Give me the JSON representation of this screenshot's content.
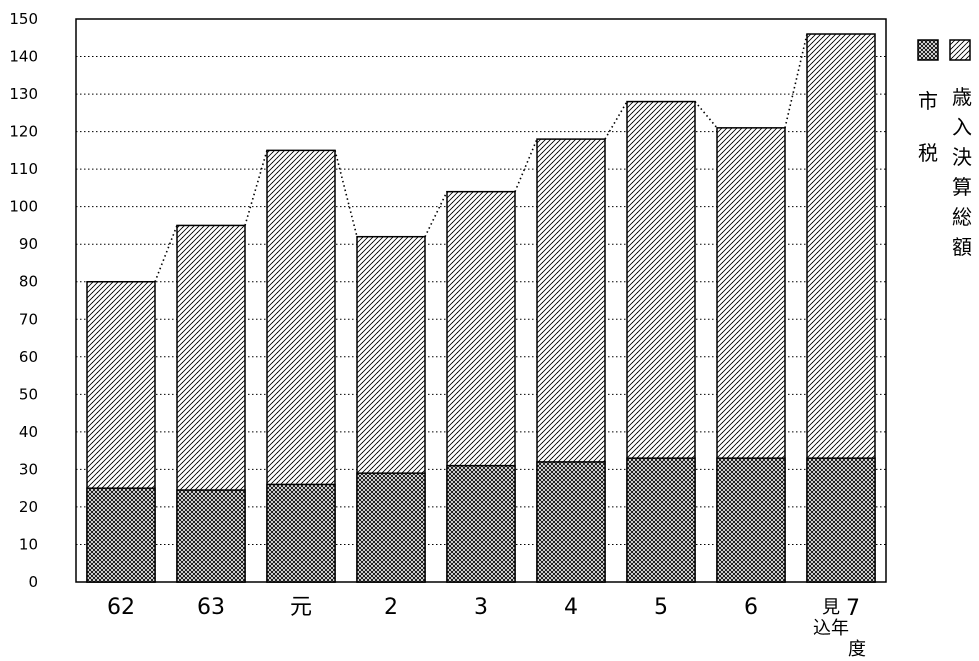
{
  "chart_data": {
    "type": "bar",
    "stacked": false,
    "overlapped": true,
    "categories": [
      "62",
      "63",
      "元",
      "2",
      "3",
      "4",
      "5",
      "6",
      "7"
    ],
    "category_notes": [
      "",
      "",
      "",
      "",
      "",
      "",
      "",
      "",
      "見込年度"
    ],
    "series": [
      {
        "name": "歳入決算総額",
        "values": [
          80,
          95,
          115,
          92,
          104,
          118,
          128,
          121,
          146
        ]
      },
      {
        "name": "市税",
        "values": [
          25,
          24.5,
          26,
          29,
          31,
          32,
          33,
          33,
          33
        ]
      }
    ],
    "connector_line_series": "歳入決算総額",
    "ylim": [
      0,
      150
    ],
    "yticks": [
      0,
      10,
      20,
      30,
      40,
      50,
      60,
      70,
      80,
      90,
      100,
      110,
      120,
      130,
      140,
      150
    ],
    "grid": true,
    "legend_position": "right",
    "title": "",
    "xlabel": "",
    "ylabel": "",
    "colors": {
      "ink": "#000000",
      "background": "#ffffff"
    }
  }
}
